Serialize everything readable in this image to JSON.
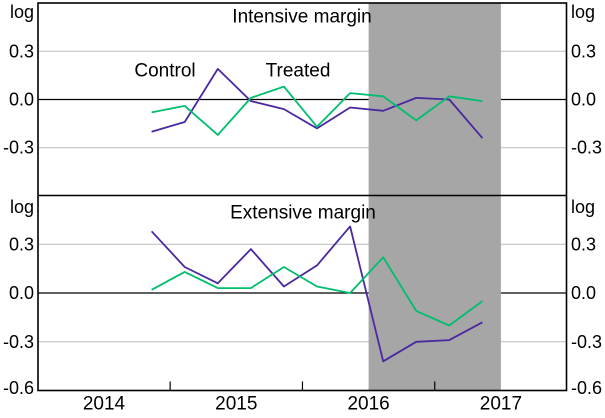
{
  "figure": {
    "unit_label": "log",
    "series_labels": {
      "control": "Control",
      "treated": "Treated"
    },
    "colors": {
      "control": "#4b28a0",
      "treated": "#00be6e",
      "shading": "#a6a6a6",
      "gridline": "#bcbcbc",
      "axis": "#000000",
      "background": "#ffffff"
    },
    "x_axis": {
      "year_labels": [
        "2014",
        "2015",
        "2016",
        "2017"
      ],
      "year_positions": [
        2014,
        2015,
        2016,
        2017
      ],
      "midyear_tick_positions": [
        2014.5,
        2015.5,
        2016.5
      ]
    }
  },
  "chart_data": [
    {
      "type": "line",
      "title": "Intensive margin",
      "ylabel": "log",
      "ylim": [
        -0.6,
        0.6
      ],
      "yticks": [
        0.3,
        0.0,
        -0.3
      ],
      "ytick_labels": [
        "0.3",
        "0.0",
        "-0.3"
      ],
      "grid": true,
      "legend_position": "inline",
      "shaded_region_x": [
        2016,
        2017
      ],
      "categories": [
        "2014Q2",
        "2014Q3",
        "2014Q4",
        "2015Q1",
        "2015Q2",
        "2015Q3",
        "2015Q4",
        "2016Q1",
        "2016Q2",
        "2016Q3",
        "2016Q4"
      ],
      "x": [
        2014.36,
        2014.61,
        2014.86,
        2015.11,
        2015.36,
        2015.61,
        2015.86,
        2016.11,
        2016.36,
        2016.61,
        2016.86
      ],
      "series": [
        {
          "name": "Control",
          "color": "#4b28a0",
          "values": [
            -0.2,
            -0.14,
            0.19,
            -0.01,
            -0.06,
            -0.18,
            -0.05,
            -0.07,
            0.01,
            0.0,
            -0.24
          ]
        },
        {
          "name": "Treated",
          "color": "#00be6e",
          "values": [
            -0.08,
            -0.04,
            -0.22,
            0.01,
            0.08,
            -0.17,
            0.04,
            0.02,
            -0.13,
            0.02,
            -0.01
          ]
        }
      ]
    },
    {
      "type": "line",
      "title": "Extensive margin",
      "ylabel": "log",
      "ylim": [
        -0.6,
        0.6
      ],
      "yticks": [
        0.3,
        0.0,
        -0.3,
        -0.6
      ],
      "ytick_labels": [
        "0.3",
        "0.0",
        "-0.3",
        "-0.6"
      ],
      "grid": true,
      "legend_position": "none",
      "shaded_region_x": [
        2016,
        2017
      ],
      "categories": [
        "2014Q2",
        "2014Q3",
        "2014Q4",
        "2015Q1",
        "2015Q2",
        "2015Q3",
        "2015Q4",
        "2016Q1",
        "2016Q2",
        "2016Q3",
        "2016Q4"
      ],
      "x": [
        2014.36,
        2014.61,
        2014.86,
        2015.11,
        2015.36,
        2015.61,
        2015.86,
        2016.11,
        2016.36,
        2016.61,
        2016.86
      ],
      "series": [
        {
          "name": "Control",
          "color": "#4b28a0",
          "values": [
            0.38,
            0.16,
            0.06,
            0.27,
            0.04,
            0.17,
            0.41,
            -0.42,
            -0.3,
            -0.29,
            -0.18
          ]
        },
        {
          "name": "Treated",
          "color": "#00be6e",
          "values": [
            0.02,
            0.13,
            0.03,
            0.03,
            0.16,
            0.04,
            0.0,
            0.22,
            -0.11,
            -0.2,
            -0.05
          ]
        }
      ]
    }
  ]
}
